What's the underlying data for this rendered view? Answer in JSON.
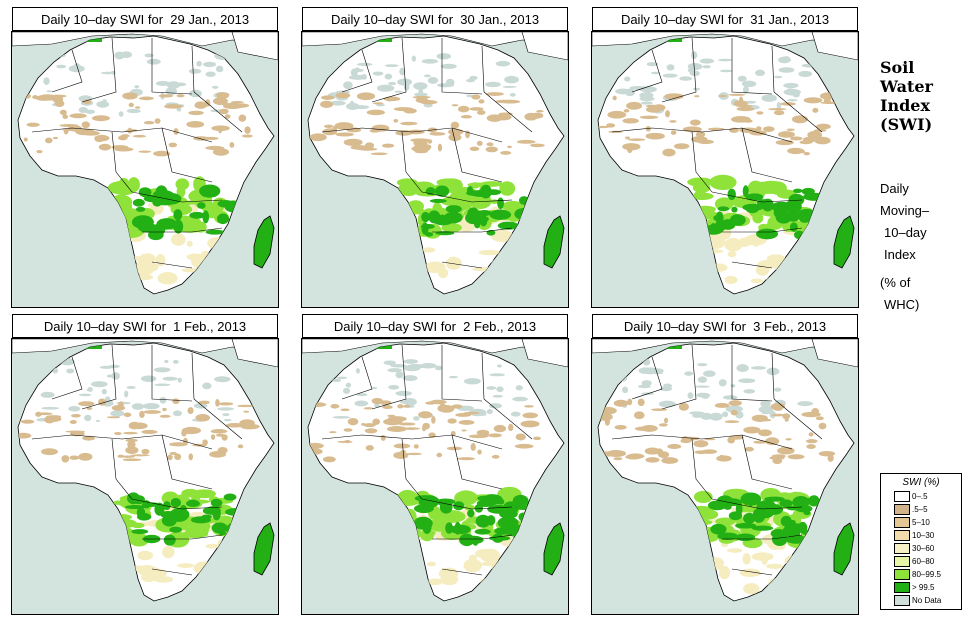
{
  "panels": [
    {
      "title": "Daily 10–day SWI for  29 Jan., 2013",
      "variant": 0
    },
    {
      "title": "Daily 10–day SWI for  30 Jan., 2013",
      "variant": 1
    },
    {
      "title": "Daily 10–day SWI for  31 Jan., 2013",
      "variant": 2
    },
    {
      "title": "Daily 10–day SWI for  1 Feb., 2013",
      "variant": 3
    },
    {
      "title": "Daily 10–day SWI for  2 Feb., 2013",
      "variant": 4
    },
    {
      "title": "Daily 10–day SWI for  3 Feb., 2013",
      "variant": 5
    }
  ],
  "side": {
    "title_line1": "Soil",
    "title_line2": "Water",
    "title_line3": "Index",
    "title_line4": "(SWI)",
    "desc_line1": "Daily",
    "desc_line2": "Moving–",
    "desc_line3": "10–day",
    "desc_line4": "Index",
    "desc_line5": "(% of",
    "desc_line6": "WHC)"
  },
  "legend": {
    "title": "SWI (%)",
    "items": [
      {
        "label": "0–.5",
        "color": "#ffffff"
      },
      {
        "label": ".5–5",
        "color": "#d2b48c"
      },
      {
        "label": "5–10",
        "color": "#e3c896"
      },
      {
        "label": "10–30",
        "color": "#f1dcae"
      },
      {
        "label": "30–60",
        "color": "#f8f0c6"
      },
      {
        "label": "60–80",
        "color": "#e6f6a6"
      },
      {
        "label": "80–99.5",
        "color": "#8ee23a"
      },
      {
        "label": "> 99.5",
        "color": "#22b014"
      },
      {
        "label": "No Data",
        "color": "#d0dfda"
      }
    ]
  },
  "colors": {
    "ocean": "#d3e3dd",
    "land": "#ffffff",
    "dry": "#d8bb8f",
    "moist": "#f5ecc0",
    "wet": "#8ee23a",
    "saturated": "#22b014",
    "nodata": "#c9d9d5"
  }
}
